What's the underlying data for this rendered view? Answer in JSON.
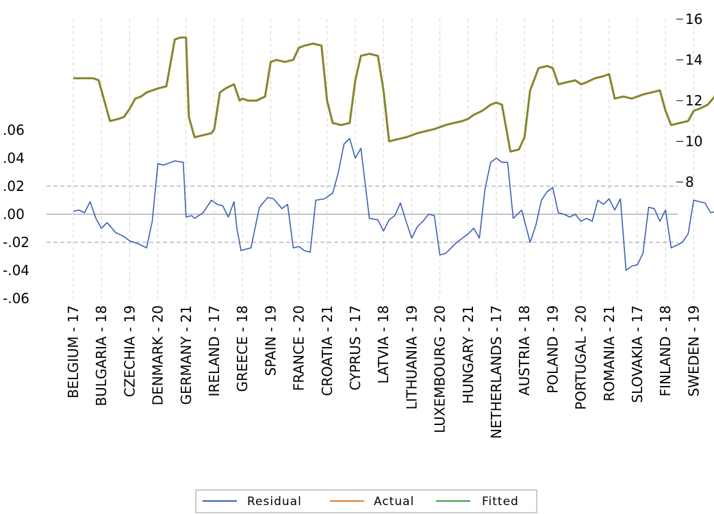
{
  "chart_data": {
    "type": "line",
    "categories": [
      "BELGIUM - 17",
      "BULGARIA - 18",
      "CZECHIA - 19",
      "DENMARK - 20",
      "GERMANY - 21",
      "IRELAND - 17",
      "GREECE - 18",
      "SPAIN - 19",
      "FRANCE - 20",
      "CROATIA - 21",
      "CYPRUS - 17",
      "LATVIA - 18",
      "LITHUANIA - 19",
      "LUXEMBOURG - 20",
      "HUNGARY - 21",
      "NETHERLANDS - 17",
      "AUSTRIA - 18",
      "POLAND - 19",
      "PORTUGAL - 20",
      "ROMANIA - 21",
      "SLOVAKIA - 17",
      "FINLAND - 18",
      "SWEDEN - 19"
    ],
    "left_axis": {
      "ylim": [
        -0.06,
        0.06
      ],
      "ticks": [
        ".06",
        ".04",
        ".02",
        ".00",
        "-.02",
        "-.04",
        "-.06"
      ]
    },
    "right_axis": {
      "ylim": [
        8,
        16
      ],
      "ticks": [
        "16",
        "14",
        "12",
        "10",
        "8"
      ]
    },
    "residual_ref_lines": [
      0.02,
      0.0,
      -0.02
    ],
    "grid": true,
    "legend_position": "bottom",
    "colors": {
      "residual": "#3b5fb5",
      "actual": "#e07b2c",
      "fitted": "#3f9a3f",
      "grid": "#d4d4d4",
      "refline": "#aaaaaa",
      "zeroline": "#a0a0a0"
    },
    "series": [
      {
        "name": "Residual",
        "axis": "left",
        "x": [
          0.0,
          0.2,
          0.4,
          0.6,
          0.8,
          1.0,
          1.2,
          1.5,
          1.8,
          2.0,
          2.3,
          2.6,
          2.8,
          3.0,
          3.2,
          3.6,
          3.9,
          4.0,
          4.2,
          4.3,
          4.6,
          4.9,
          5.1,
          5.3,
          5.5,
          5.7,
          5.8,
          5.95,
          6.1,
          6.3,
          6.6,
          6.9,
          7.1,
          7.4,
          7.6,
          7.8,
          8.0,
          8.2,
          8.4,
          8.6,
          8.9,
          9.2,
          9.4,
          9.6,
          9.8,
          10.0,
          10.2,
          10.5,
          10.8,
          11.0,
          11.2,
          11.4,
          11.6,
          11.8,
          12.0,
          12.2,
          12.4,
          12.6,
          12.8,
          13.0,
          13.2,
          13.4,
          13.6,
          13.8,
          14.0,
          14.2,
          14.4,
          14.6,
          14.8,
          15.0,
          15.2,
          15.4,
          15.6,
          15.9,
          16.2,
          16.4,
          16.6,
          16.8,
          17.0,
          17.2,
          17.4,
          17.6,
          17.8,
          18.0,
          18.2,
          18.4,
          18.6,
          18.8,
          19.0,
          19.2,
          19.4,
          19.6,
          19.8,
          20.0,
          20.2,
          20.4,
          20.6,
          20.8,
          21.0,
          21.2,
          21.4,
          21.6,
          21.8,
          22.0,
          22.2,
          22.4,
          22.6,
          22.8,
          23.0
        ],
        "values": [
          0.002,
          0.003,
          0.001,
          0.009,
          -0.003,
          -0.01,
          -0.006,
          -0.013,
          -0.016,
          -0.019,
          -0.021,
          -0.024,
          -0.005,
          0.036,
          0.035,
          0.038,
          0.037,
          -0.002,
          -0.001,
          -0.003,
          0.001,
          0.01,
          0.007,
          0.006,
          -0.002,
          0.009,
          -0.01,
          -0.026,
          -0.025,
          -0.024,
          0.005,
          0.012,
          0.011,
          0.004,
          0.007,
          -0.024,
          -0.023,
          -0.026,
          -0.027,
          0.01,
          0.011,
          0.015,
          0.03,
          0.05,
          0.054,
          0.04,
          0.047,
          -0.003,
          -0.004,
          -0.012,
          -0.004,
          -0.001,
          0.008,
          -0.005,
          -0.017,
          -0.009,
          -0.005,
          0.0,
          -0.001,
          -0.029,
          -0.028,
          -0.024,
          -0.02,
          -0.017,
          -0.014,
          -0.01,
          -0.017,
          0.018,
          0.037,
          0.04,
          0.037,
          0.037,
          -0.003,
          0.003,
          -0.02,
          -0.008,
          0.01,
          0.016,
          0.019,
          0.001,
          0.0,
          -0.002,
          0.0,
          -0.005,
          -0.003,
          -0.005,
          0.01,
          0.007,
          0.011,
          0.003,
          0.011,
          -0.04,
          -0.037,
          -0.036,
          -0.028,
          0.005,
          0.004,
          -0.005,
          0.003,
          -0.024,
          -0.022,
          -0.02,
          -0.014,
          0.01,
          0.009,
          0.008,
          0.001,
          0.002,
          0.004
        ]
      },
      {
        "name": "Actual",
        "axis": "right",
        "x": [
          0.0,
          0.7,
          0.9,
          1.0,
          1.3,
          1.6,
          1.8,
          2.0,
          2.2,
          2.4,
          2.6,
          2.8,
          3.0,
          3.3,
          3.6,
          3.8,
          4.0,
          4.1,
          4.3,
          4.6,
          4.9,
          5.0,
          5.2,
          5.4,
          5.7,
          5.9,
          6.0,
          6.2,
          6.5,
          6.8,
          7.0,
          7.2,
          7.5,
          7.8,
          8.0,
          8.2,
          8.5,
          8.8,
          9.0,
          9.2,
          9.5,
          9.8,
          10.0,
          10.2,
          10.5,
          10.8,
          11.0,
          11.2,
          11.5,
          11.8,
          12.0,
          12.2,
          12.5,
          12.8,
          13.0,
          13.2,
          13.5,
          13.8,
          14.0,
          14.2,
          14.5,
          14.8,
          15.0,
          15.2,
          15.5,
          15.8,
          16.0,
          16.2,
          16.5,
          16.8,
          17.0,
          17.2,
          17.5,
          17.8,
          18.0,
          18.2,
          18.5,
          18.8,
          19.0,
          19.2,
          19.5,
          19.8,
          20.0,
          20.2,
          20.5,
          20.8,
          21.0,
          21.2,
          21.5,
          21.8,
          22.0,
          22.2,
          22.5,
          22.8,
          23.0
        ],
        "values": [
          13.1,
          13.1,
          13.0,
          12.5,
          11.0,
          11.1,
          11.2,
          11.6,
          12.1,
          12.2,
          12.4,
          12.5,
          12.6,
          12.7,
          15.0,
          15.1,
          15.1,
          11.2,
          10.2,
          10.3,
          10.4,
          10.6,
          12.4,
          12.6,
          12.8,
          12.0,
          12.1,
          12.0,
          12.0,
          12.2,
          13.9,
          14.0,
          13.9,
          14.0,
          14.6,
          14.7,
          14.8,
          14.7,
          12.0,
          10.9,
          10.8,
          10.9,
          13.0,
          14.2,
          14.3,
          14.2,
          12.5,
          10.0,
          10.1,
          10.2,
          10.3,
          10.4,
          10.5,
          10.6,
          10.7,
          10.8,
          10.9,
          11.0,
          11.1,
          11.3,
          11.5,
          11.8,
          11.9,
          11.8,
          9.5,
          9.6,
          10.2,
          12.5,
          13.6,
          13.7,
          13.6,
          12.8,
          12.9,
          13.0,
          12.8,
          12.9,
          13.1,
          13.2,
          13.3,
          12.1,
          12.2,
          12.1,
          12.2,
          12.3,
          12.4,
          12.5,
          11.5,
          10.8,
          10.9,
          11.0,
          11.5,
          11.6,
          11.8,
          12.3,
          12.4
        ]
      },
      {
        "name": "Fitted",
        "axis": "right",
        "x": [
          0.0,
          0.7,
          0.9,
          1.0,
          1.3,
          1.6,
          1.8,
          2.0,
          2.2,
          2.4,
          2.6,
          2.8,
          3.0,
          3.3,
          3.6,
          3.8,
          4.0,
          4.1,
          4.3,
          4.6,
          4.9,
          5.0,
          5.2,
          5.4,
          5.7,
          5.9,
          6.0,
          6.2,
          6.5,
          6.8,
          7.0,
          7.2,
          7.5,
          7.8,
          8.0,
          8.2,
          8.5,
          8.8,
          9.0,
          9.2,
          9.5,
          9.8,
          10.0,
          10.2,
          10.5,
          10.8,
          11.0,
          11.2,
          11.5,
          11.8,
          12.0,
          12.2,
          12.5,
          12.8,
          13.0,
          13.2,
          13.5,
          13.8,
          14.0,
          14.2,
          14.5,
          14.8,
          15.0,
          15.2,
          15.5,
          15.8,
          16.0,
          16.2,
          16.5,
          16.8,
          17.0,
          17.2,
          17.5,
          17.8,
          18.0,
          18.2,
          18.5,
          18.8,
          19.0,
          19.2,
          19.5,
          19.8,
          20.0,
          20.2,
          20.5,
          20.8,
          21.0,
          21.2,
          21.5,
          21.8,
          22.0,
          22.2,
          22.5,
          22.8,
          23.0
        ],
        "values": [
          13.1,
          13.1,
          13.0,
          12.5,
          11.0,
          11.1,
          11.2,
          11.6,
          12.1,
          12.2,
          12.4,
          12.5,
          12.6,
          12.7,
          15.0,
          15.1,
          15.1,
          11.2,
          10.2,
          10.3,
          10.4,
          10.6,
          12.4,
          12.6,
          12.8,
          12.0,
          12.1,
          12.0,
          12.0,
          12.2,
          13.9,
          14.0,
          13.9,
          14.0,
          14.6,
          14.7,
          14.8,
          14.7,
          12.0,
          10.9,
          10.8,
          10.9,
          13.0,
          14.2,
          14.3,
          14.2,
          12.5,
          10.0,
          10.1,
          10.2,
          10.3,
          10.4,
          10.5,
          10.6,
          10.7,
          10.8,
          10.9,
          11.0,
          11.1,
          11.3,
          11.5,
          11.8,
          11.9,
          11.8,
          9.5,
          9.6,
          10.2,
          12.5,
          13.6,
          13.7,
          13.6,
          12.8,
          12.9,
          13.0,
          12.8,
          12.9,
          13.1,
          13.2,
          13.3,
          12.1,
          12.2,
          12.1,
          12.2,
          12.3,
          12.4,
          12.5,
          11.5,
          10.8,
          10.9,
          11.0,
          11.5,
          11.6,
          11.8,
          12.3,
          12.4
        ]
      }
    ],
    "legend": [
      "Residual",
      "Actual",
      "Fitted"
    ]
  }
}
